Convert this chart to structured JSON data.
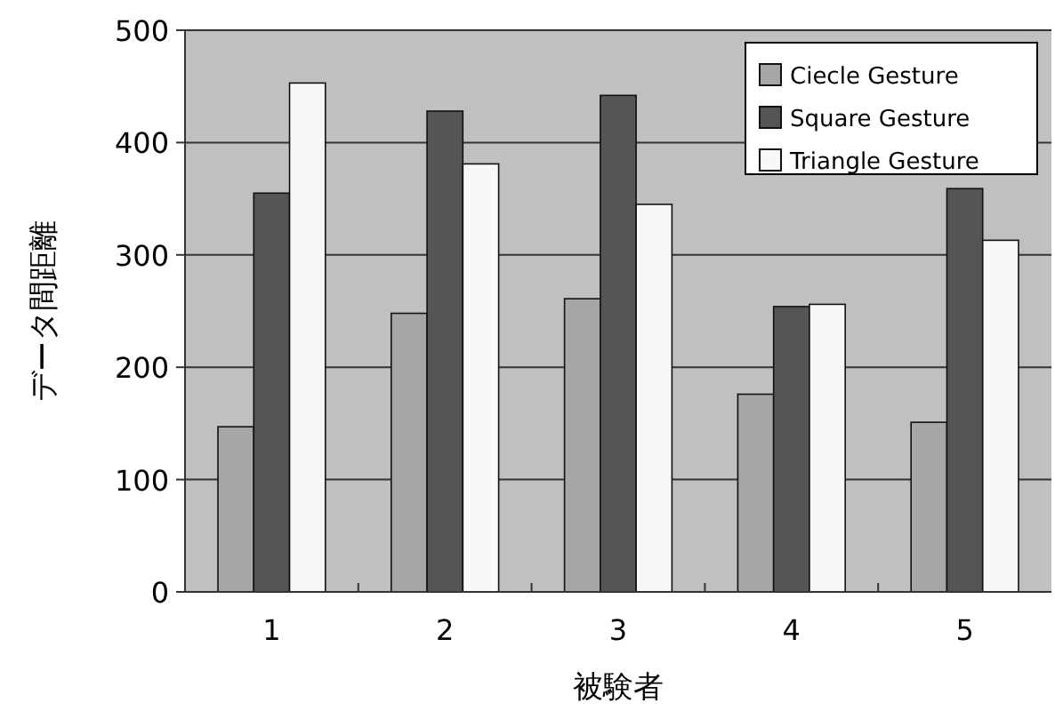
{
  "chart_data": {
    "type": "bar",
    "xlabel": "被験者",
    "ylabel": "データ間距離",
    "categories": [
      "1",
      "2",
      "3",
      "4",
      "5"
    ],
    "series": [
      {
        "name": "Ciecle Gesture",
        "color": "#a6a6a6",
        "values": [
          147,
          248,
          261,
          176,
          151
        ]
      },
      {
        "name": "Square Gesture",
        "color": "#555555",
        "values": [
          355,
          428,
          442,
          254,
          359
        ]
      },
      {
        "name": "Triangle Gesture",
        "color": "#f8f8f8",
        "values": [
          453,
          381,
          345,
          256,
          313
        ]
      }
    ],
    "ylim": [
      0,
      500
    ],
    "yticks": [
      0,
      100,
      200,
      300,
      400,
      500
    ],
    "grid": "y",
    "legend": "top right"
  }
}
